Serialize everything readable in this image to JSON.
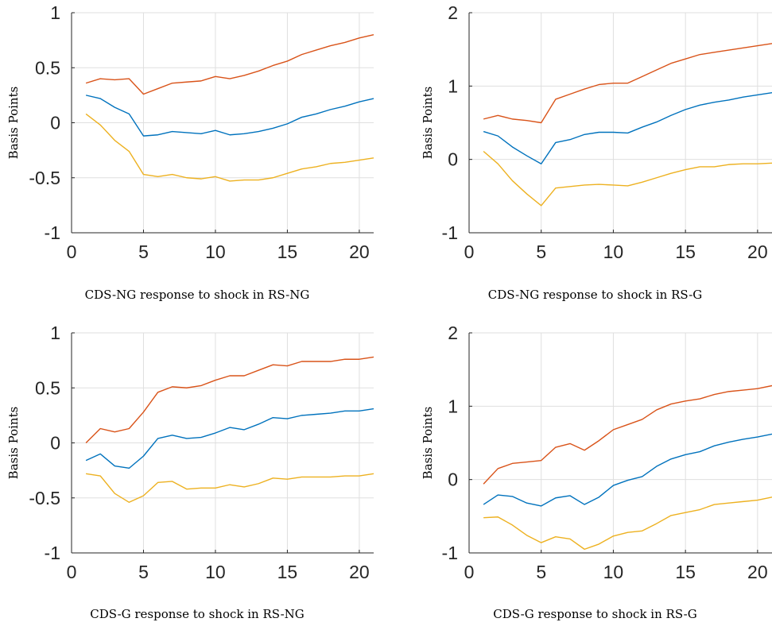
{
  "colors": {
    "upper": "#d95319",
    "median": "#0072bd",
    "lower": "#edb120",
    "grid": "#dfdfdf",
    "axis": "#262626"
  },
  "chart_data": [
    {
      "type": "line",
      "caption": "CDS-NG response to shock in RS-NG",
      "ylabel": "Basis Points",
      "xlim": [
        0,
        21
      ],
      "ylim": [
        -1,
        1
      ],
      "xticks": [
        0,
        5,
        10,
        15,
        20
      ],
      "xtick_labels": [
        "0",
        "5",
        "10",
        "15",
        "20"
      ],
      "yticks": [
        -1,
        -0.5,
        0,
        0.5,
        1
      ],
      "ytick_labels": [
        "-1",
        "-0.5",
        "0",
        "0.5",
        "1"
      ],
      "grid": true,
      "x": [
        1,
        2,
        3,
        4,
        5,
        6,
        7,
        8,
        9,
        10,
        11,
        12,
        13,
        14,
        15,
        16,
        17,
        18,
        19,
        20,
        21
      ],
      "series": [
        {
          "color_key": "upper",
          "values": [
            0.36,
            0.4,
            0.39,
            0.4,
            0.26,
            0.31,
            0.36,
            0.37,
            0.38,
            0.42,
            0.4,
            0.43,
            0.47,
            0.52,
            0.56,
            0.62,
            0.66,
            0.7,
            0.73,
            0.77,
            0.8
          ]
        },
        {
          "color_key": "median",
          "values": [
            0.25,
            0.22,
            0.14,
            0.08,
            -0.12,
            -0.11,
            -0.08,
            -0.09,
            -0.1,
            -0.07,
            -0.11,
            -0.1,
            -0.08,
            -0.05,
            -0.01,
            0.05,
            0.08,
            0.12,
            0.15,
            0.19,
            0.22
          ]
        },
        {
          "color_key": "lower",
          "values": [
            0.08,
            -0.02,
            -0.16,
            -0.26,
            -0.47,
            -0.49,
            -0.47,
            -0.5,
            -0.51,
            -0.49,
            -0.53,
            -0.52,
            -0.52,
            -0.5,
            -0.46,
            -0.42,
            -0.4,
            -0.37,
            -0.36,
            -0.34,
            -0.32
          ]
        }
      ]
    },
    {
      "type": "line",
      "caption": "CDS-NG response to shock in RS-G",
      "ylabel": "Basis Points",
      "xlim": [
        0,
        21
      ],
      "ylim": [
        -1,
        2
      ],
      "xticks": [
        0,
        5,
        10,
        15,
        20
      ],
      "xtick_labels": [
        "0",
        "5",
        "10",
        "15",
        "20"
      ],
      "yticks": [
        -1,
        0,
        1,
        2
      ],
      "ytick_labels": [
        "-1",
        "0",
        "1",
        "2"
      ],
      "grid": true,
      "x": [
        1,
        2,
        3,
        4,
        5,
        6,
        7,
        8,
        9,
        10,
        11,
        12,
        13,
        14,
        15,
        16,
        17,
        18,
        19,
        20,
        21
      ],
      "series": [
        {
          "color_key": "upper",
          "values": [
            0.55,
            0.6,
            0.55,
            0.53,
            0.5,
            0.82,
            0.89,
            0.96,
            1.02,
            1.04,
            1.04,
            1.13,
            1.22,
            1.31,
            1.37,
            1.43,
            1.46,
            1.49,
            1.52,
            1.55,
            1.58
          ]
        },
        {
          "color_key": "median",
          "values": [
            0.38,
            0.32,
            0.17,
            0.05,
            -0.06,
            0.23,
            0.27,
            0.34,
            0.37,
            0.37,
            0.36,
            0.44,
            0.51,
            0.6,
            0.68,
            0.74,
            0.78,
            0.81,
            0.85,
            0.88,
            0.91
          ]
        },
        {
          "color_key": "lower",
          "values": [
            0.11,
            -0.06,
            -0.29,
            -0.47,
            -0.63,
            -0.39,
            -0.37,
            -0.35,
            -0.34,
            -0.35,
            -0.36,
            -0.31,
            -0.25,
            -0.19,
            -0.14,
            -0.1,
            -0.1,
            -0.07,
            -0.06,
            -0.06,
            -0.05
          ]
        }
      ]
    },
    {
      "type": "line",
      "caption": "CDS-G response to shock in RS-NG",
      "ylabel": "Basis Points",
      "xlim": [
        0,
        21
      ],
      "ylim": [
        -1,
        1
      ],
      "xticks": [
        0,
        5,
        10,
        15,
        20
      ],
      "xtick_labels": [
        "0",
        "5",
        "10",
        "15",
        "20"
      ],
      "yticks": [
        -1,
        -0.5,
        0,
        0.5,
        1
      ],
      "ytick_labels": [
        "-1",
        "-0.5",
        "0",
        "0.5",
        "1"
      ],
      "grid": true,
      "x": [
        1,
        2,
        3,
        4,
        5,
        6,
        7,
        8,
        9,
        10,
        11,
        12,
        13,
        14,
        15,
        16,
        17,
        18,
        19,
        20,
        21
      ],
      "series": [
        {
          "color_key": "upper",
          "values": [
            0.0,
            0.13,
            0.1,
            0.13,
            0.28,
            0.46,
            0.51,
            0.5,
            0.52,
            0.57,
            0.61,
            0.61,
            0.66,
            0.71,
            0.7,
            0.74,
            0.74,
            0.74,
            0.76,
            0.76,
            0.78
          ]
        },
        {
          "color_key": "median",
          "values": [
            -0.16,
            -0.1,
            -0.21,
            -0.23,
            -0.12,
            0.04,
            0.07,
            0.04,
            0.05,
            0.09,
            0.14,
            0.12,
            0.17,
            0.23,
            0.22,
            0.25,
            0.26,
            0.27,
            0.29,
            0.29,
            0.31
          ]
        },
        {
          "color_key": "lower",
          "values": [
            -0.28,
            -0.3,
            -0.46,
            -0.54,
            -0.48,
            -0.36,
            -0.35,
            -0.42,
            -0.41,
            -0.41,
            -0.38,
            -0.4,
            -0.37,
            -0.32,
            -0.33,
            -0.31,
            -0.31,
            -0.31,
            -0.3,
            -0.3,
            -0.28
          ]
        }
      ]
    },
    {
      "type": "line",
      "caption": "CDS-G response to shock in RS-G",
      "ylabel": "Basis Points",
      "xlim": [
        0,
        21
      ],
      "ylim": [
        -1,
        2
      ],
      "xticks": [
        0,
        5,
        10,
        15,
        20
      ],
      "xtick_labels": [
        "0",
        "5",
        "10",
        "15",
        "20"
      ],
      "yticks": [
        -1,
        0,
        1,
        2
      ],
      "ytick_labels": [
        "-1",
        "0",
        "1",
        "2"
      ],
      "grid": true,
      "x": [
        1,
        2,
        3,
        4,
        5,
        6,
        7,
        8,
        9,
        10,
        11,
        12,
        13,
        14,
        15,
        16,
        17,
        18,
        19,
        20,
        21
      ],
      "series": [
        {
          "color_key": "upper",
          "values": [
            -0.06,
            0.15,
            0.22,
            0.24,
            0.26,
            0.44,
            0.49,
            0.4,
            0.53,
            0.68,
            0.75,
            0.82,
            0.95,
            1.03,
            1.07,
            1.1,
            1.16,
            1.2,
            1.22,
            1.24,
            1.28
          ]
        },
        {
          "color_key": "median",
          "values": [
            -0.34,
            -0.21,
            -0.23,
            -0.32,
            -0.36,
            -0.25,
            -0.22,
            -0.34,
            -0.24,
            -0.08,
            -0.01,
            0.04,
            0.18,
            0.28,
            0.34,
            0.38,
            0.46,
            0.51,
            0.55,
            0.58,
            0.62
          ]
        },
        {
          "color_key": "lower",
          "values": [
            -0.52,
            -0.51,
            -0.62,
            -0.76,
            -0.86,
            -0.78,
            -0.81,
            -0.95,
            -0.88,
            -0.77,
            -0.72,
            -0.7,
            -0.6,
            -0.49,
            -0.45,
            -0.41,
            -0.34,
            -0.32,
            -0.3,
            -0.28,
            -0.24
          ]
        }
      ]
    }
  ]
}
